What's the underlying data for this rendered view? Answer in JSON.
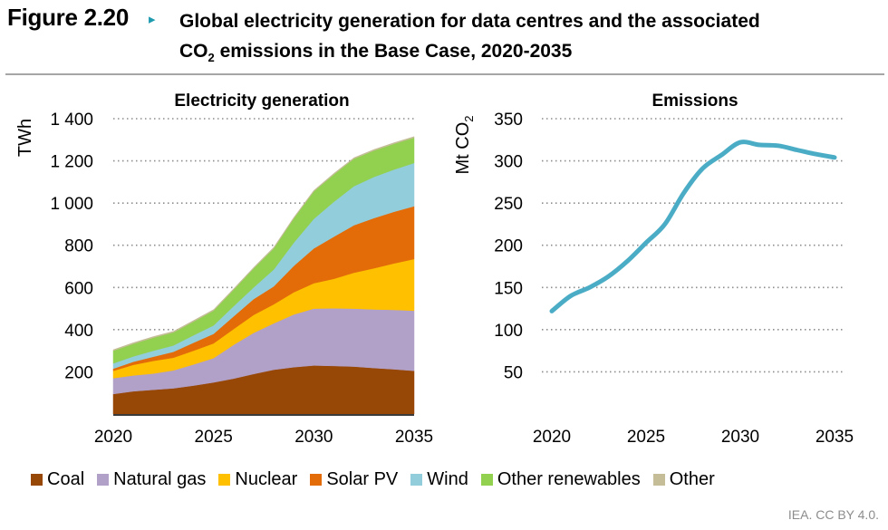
{
  "figure": {
    "label": "Figure 2.20",
    "arrow_icon": "▸",
    "title_line1": "Global electricity generation for data centres and the associated",
    "title_line2_pre": "CO",
    "title_line2_sub": "2",
    "title_line2_post": " emissions in the Base Case, 2020-2035",
    "credit": "IEA. CC BY 4.0."
  },
  "chart_data": [
    {
      "type": "area",
      "stacked": true,
      "title": "Electricity generation",
      "xlabel": "",
      "ylabel": "TWh",
      "x": [
        2020,
        2021,
        2022,
        2023,
        2024,
        2025,
        2026,
        2027,
        2028,
        2029,
        2030,
        2031,
        2032,
        2033,
        2034,
        2035
      ],
      "xticks": [
        "2020",
        "2025",
        "2030",
        "2035"
      ],
      "xlim": [
        2020,
        2035
      ],
      "ylim": [
        0,
        1400
      ],
      "yticks": [
        200,
        400,
        600,
        800,
        1000,
        1200,
        1400
      ],
      "ytick_labels": [
        "200",
        "400",
        "600",
        "800",
        "1 000",
        "1 200",
        "1 400"
      ],
      "grid": "horizontal-dotted",
      "legend_position": "bottom",
      "series": [
        {
          "name": "Coal",
          "color": "#974706",
          "values": [
            95,
            108,
            115,
            122,
            135,
            150,
            168,
            190,
            210,
            222,
            230,
            228,
            225,
            218,
            212,
            205
          ]
        },
        {
          "name": "Natural gas",
          "color": "#b1a0c7",
          "values": [
            75,
            75,
            77,
            85,
            100,
            115,
            160,
            195,
            220,
            250,
            270,
            273,
            275,
            278,
            282,
            285
          ]
        },
        {
          "name": "Nuclear",
          "color": "#ffc000",
          "values": [
            35,
            50,
            60,
            60,
            65,
            70,
            75,
            85,
            90,
            105,
            120,
            140,
            170,
            195,
            220,
            245
          ]
        },
        {
          "name": "Solar PV",
          "color": "#e36c09",
          "values": [
            10,
            15,
            20,
            28,
            38,
            45,
            60,
            75,
            85,
            125,
            165,
            200,
            225,
            238,
            245,
            250
          ]
        },
        {
          "name": "Wind",
          "color": "#92cddc",
          "values": [
            25,
            25,
            28,
            30,
            35,
            40,
            48,
            55,
            80,
            110,
            140,
            165,
            185,
            195,
            200,
            205
          ]
        },
        {
          "name": "Other renewables",
          "color": "#92d050",
          "values": [
            60,
            60,
            62,
            62,
            65,
            70,
            78,
            90,
            100,
            115,
            130,
            130,
            130,
            125,
            122,
            120
          ]
        },
        {
          "name": "Other",
          "color": "#c4bd97",
          "values": [
            5,
            5,
            5,
            5,
            5,
            5,
            5,
            5,
            5,
            5,
            5,
            5,
            5,
            5,
            5,
            5
          ]
        }
      ]
    },
    {
      "type": "line",
      "title": "Emissions",
      "xlabel": "",
      "ylabel": "Mt CO2",
      "x": [
        2020,
        2021,
        2022,
        2023,
        2024,
        2025,
        2026,
        2027,
        2028,
        2029,
        2030,
        2031,
        2032,
        2033,
        2034,
        2035
      ],
      "xticks": [
        "2020",
        "2025",
        "2030",
        "2035"
      ],
      "xlim": [
        2020,
        2035
      ],
      "ylim": [
        0,
        350
      ],
      "yticks": [
        50,
        100,
        150,
        200,
        250,
        300,
        350
      ],
      "ytick_labels": [
        "50",
        "100",
        "150",
        "200",
        "250",
        "300",
        "350"
      ],
      "grid": "horizontal-dotted",
      "series": [
        {
          "name": "Emissions",
          "color": "#4bacc6",
          "values": [
            122,
            140,
            150,
            163,
            181,
            203,
            225,
            262,
            291,
            307,
            322,
            319,
            318,
            313,
            308,
            304
          ]
        }
      ]
    }
  ]
}
